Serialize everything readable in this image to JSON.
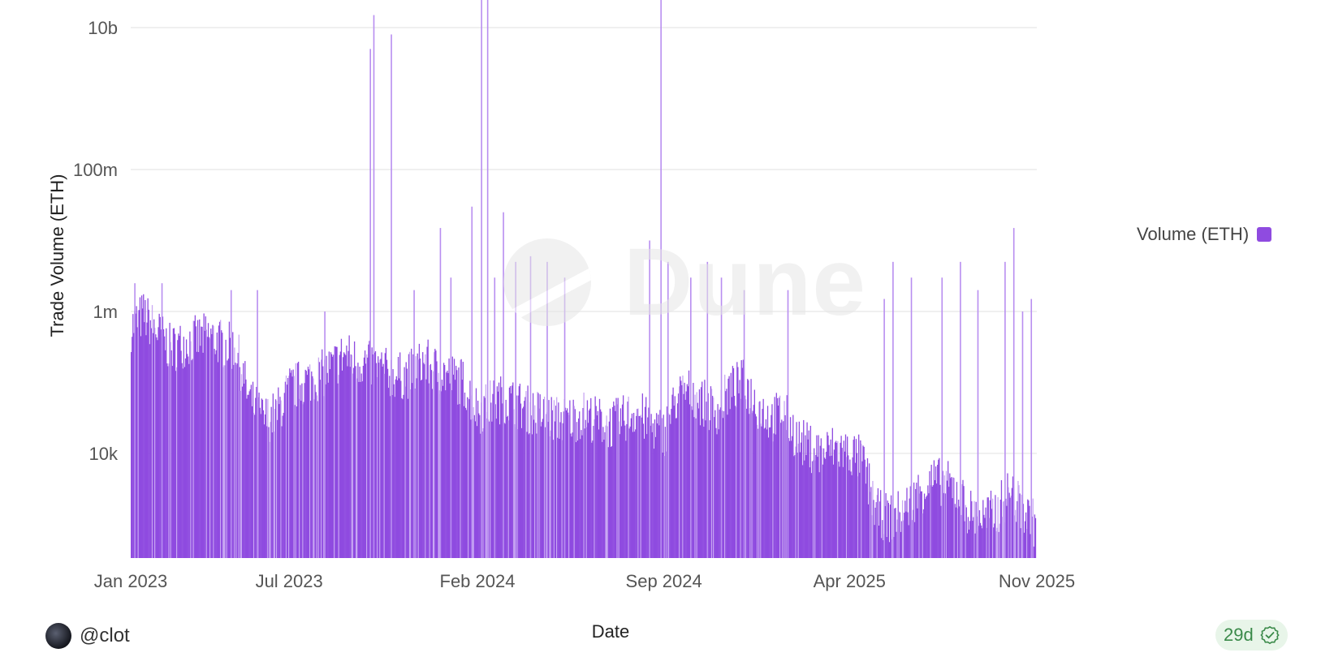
{
  "author": {
    "handle": "@clot"
  },
  "badge": {
    "age": "29d"
  },
  "watermark": {
    "text": "Dune"
  },
  "legend": {
    "label": "Volume (ETH)",
    "color": "#8f4be0"
  },
  "chart_data": {
    "type": "bar",
    "title": "",
    "xlabel": "Date",
    "ylabel": "Trade Volume (ETH)",
    "y_scale": "log",
    "yticks": [
      {
        "value": 10000,
        "label": "10k"
      },
      {
        "value": 1000000,
        "label": "1m"
      },
      {
        "value": 100000000,
        "label": "100m"
      },
      {
        "value": 10000000000,
        "label": "10b"
      }
    ],
    "ylim": [
      400,
      30000000000
    ],
    "xlim": [
      "2023-01-01",
      "2025-11-01"
    ],
    "xticks": [
      {
        "value": "2023-01-01",
        "label": "Jan 2023"
      },
      {
        "value": "2023-07-01",
        "label": "Jul 2023"
      },
      {
        "value": "2024-02-01",
        "label": "Feb 2024"
      },
      {
        "value": "2024-09-01",
        "label": "Sep 2024"
      },
      {
        "value": "2025-04-01",
        "label": "Apr 2025"
      },
      {
        "value": "2025-11-01",
        "label": "Nov 2025"
      }
    ],
    "grid": true,
    "legend_position": "right",
    "series": [
      {
        "name": "Volume (ETH)",
        "color": "#8f4be0",
        "points": [
          [
            "2023-01-01",
            600000
          ],
          [
            "2023-01-15",
            900000
          ],
          [
            "2023-02-01",
            500000
          ],
          [
            "2023-02-15",
            300000
          ],
          [
            "2023-03-01",
            350000
          ],
          [
            "2023-03-15",
            400000
          ],
          [
            "2023-04-01",
            450000
          ],
          [
            "2023-04-15",
            350000
          ],
          [
            "2023-05-01",
            300000
          ],
          [
            "2023-05-15",
            60000
          ],
          [
            "2023-06-01",
            30000
          ],
          [
            "2023-06-15",
            35000
          ],
          [
            "2023-07-01",
            80000
          ],
          [
            "2023-07-15",
            100000
          ],
          [
            "2023-08-01",
            120000
          ],
          [
            "2023-08-15",
            150000
          ],
          [
            "2023-09-01",
            250000
          ],
          [
            "2023-09-15",
            200000
          ],
          [
            "2023-10-01",
            180000
          ],
          [
            "2023-10-15",
            150000
          ],
          [
            "2023-11-01",
            120000
          ],
          [
            "2023-11-15",
            130000
          ],
          [
            "2023-12-01",
            200000
          ],
          [
            "2023-12-15",
            150000
          ],
          [
            "2024-01-01",
            120000
          ],
          [
            "2024-01-15",
            100000
          ],
          [
            "2024-02-01",
            40000
          ],
          [
            "2024-02-15",
            50000
          ],
          [
            "2024-03-01",
            60000
          ],
          [
            "2024-03-15",
            50000
          ],
          [
            "2024-04-01",
            40000
          ],
          [
            "2024-04-15",
            35000
          ],
          [
            "2024-05-01",
            30000
          ],
          [
            "2024-05-15",
            30000
          ],
          [
            "2024-06-01",
            35000
          ],
          [
            "2024-06-15",
            30000
          ],
          [
            "2024-07-01",
            25000
          ],
          [
            "2024-07-15",
            30000
          ],
          [
            "2024-08-01",
            40000
          ],
          [
            "2024-08-15",
            25000
          ],
          [
            "2024-09-01",
            20000
          ],
          [
            "2024-09-15",
            60000
          ],
          [
            "2024-10-01",
            80000
          ],
          [
            "2024-10-15",
            50000
          ],
          [
            "2024-11-01",
            40000
          ],
          [
            "2024-11-15",
            80000
          ],
          [
            "2024-12-01",
            100000
          ],
          [
            "2024-12-15",
            50000
          ],
          [
            "2025-01-01",
            30000
          ],
          [
            "2025-01-15",
            40000
          ],
          [
            "2025-02-01",
            15000
          ],
          [
            "2025-02-15",
            12000
          ],
          [
            "2025-03-01",
            10000
          ],
          [
            "2025-03-15",
            12000
          ],
          [
            "2025-04-01",
            10000
          ],
          [
            "2025-04-15",
            8000
          ],
          [
            "2025-05-01",
            1500
          ],
          [
            "2025-05-15",
            1200
          ],
          [
            "2025-06-01",
            1500
          ],
          [
            "2025-06-15",
            2500
          ],
          [
            "2025-07-01",
            4000
          ],
          [
            "2025-07-15",
            4000
          ],
          [
            "2025-08-01",
            3000
          ],
          [
            "2025-08-15",
            1500
          ],
          [
            "2025-09-01",
            1200
          ],
          [
            "2025-09-15",
            1500
          ],
          [
            "2025-10-01",
            3000
          ],
          [
            "2025-10-15",
            1500
          ],
          [
            "2025-10-30",
            1000
          ]
        ],
        "spikes": [
          [
            "2023-01-05",
            2500000
          ],
          [
            "2023-02-05",
            2500000
          ],
          [
            "2023-04-25",
            2000000
          ],
          [
            "2023-05-25",
            2000000
          ],
          [
            "2023-08-10",
            1000000
          ],
          [
            "2023-10-01",
            5000000000
          ],
          [
            "2023-10-05",
            15000000000
          ],
          [
            "2023-10-25",
            8000000000
          ],
          [
            "2023-11-20",
            2000000
          ],
          [
            "2023-12-20",
            15000000
          ],
          [
            "2024-01-01",
            3000000
          ],
          [
            "2024-01-25",
            30000000
          ],
          [
            "2024-02-05",
            30000000000
          ],
          [
            "2024-02-12",
            30000000000
          ],
          [
            "2024-02-20",
            3000000
          ],
          [
            "2024-03-01",
            25000000
          ],
          [
            "2024-03-15",
            5000000
          ],
          [
            "2024-04-01",
            6000000
          ],
          [
            "2024-04-20",
            5000000
          ],
          [
            "2024-05-10",
            3000000
          ],
          [
            "2024-08-15",
            10000000
          ],
          [
            "2024-08-28",
            30000000000
          ],
          [
            "2024-09-05",
            5000000
          ],
          [
            "2024-10-01",
            3000000
          ],
          [
            "2024-10-20",
            5000000
          ],
          [
            "2024-11-05",
            3000000
          ],
          [
            "2024-12-01",
            2000000
          ],
          [
            "2025-01-20",
            2000000
          ],
          [
            "2025-05-10",
            1500000
          ],
          [
            "2025-05-20",
            5000000
          ],
          [
            "2025-06-10",
            3000000
          ],
          [
            "2025-07-15",
            3000000
          ],
          [
            "2025-08-05",
            5000000
          ],
          [
            "2025-08-25",
            2000000
          ],
          [
            "2025-09-25",
            5000000
          ],
          [
            "2025-10-05",
            15000000
          ],
          [
            "2025-10-15",
            1000000
          ],
          [
            "2025-10-25",
            1500000
          ]
        ]
      }
    ]
  }
}
